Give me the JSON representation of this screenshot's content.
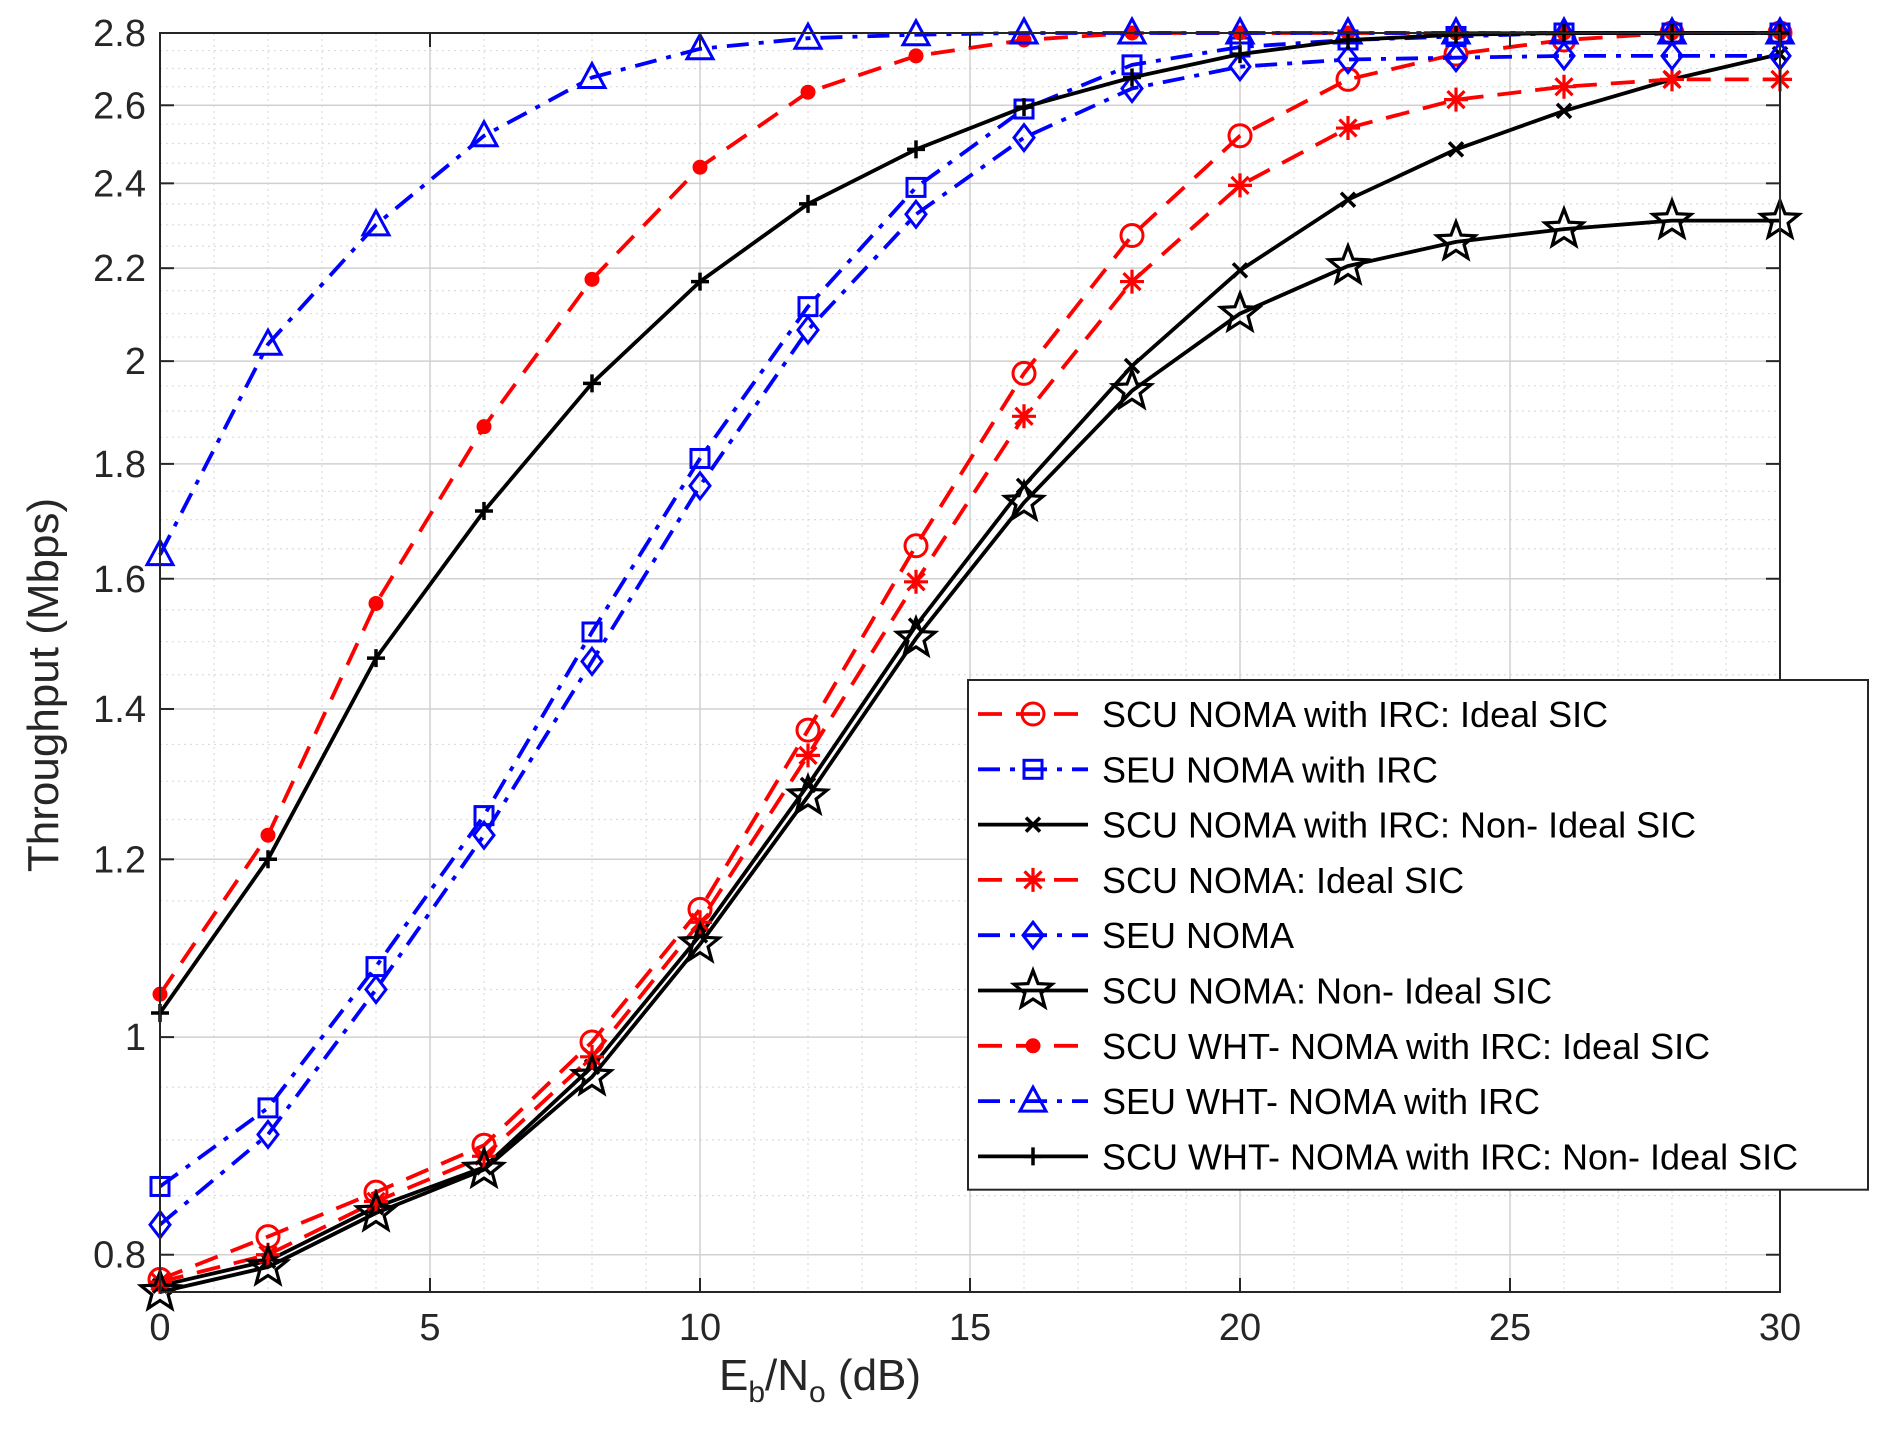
{
  "chart_data": {
    "type": "line",
    "xlabel": {
      "main": "E",
      "sub1": "b",
      "mid": "/N",
      "sub2": "o",
      "tail": " (dB)"
    },
    "ylabel": "Throughput (Mbps)",
    "xlim": [
      0,
      30
    ],
    "ylim": [
      0.77,
      2.8
    ],
    "yscale": "log",
    "grid": true,
    "legend_position": "bottom-right",
    "x_ticks": [
      0,
      5,
      10,
      15,
      20,
      25,
      30
    ],
    "y_ticks": [
      0.8,
      1,
      1.2,
      1.4,
      1.6,
      1.8,
      2,
      2.2,
      2.4,
      2.6,
      2.8
    ],
    "x_tick_labels": [
      "0",
      "5",
      "10",
      "15",
      "20",
      "25",
      "30"
    ],
    "y_tick_labels": [
      "0.8",
      "1",
      "1.2",
      "1.4",
      "1.6",
      "1.8",
      "2",
      "2.2",
      "2.4",
      "2.6",
      "2.8"
    ],
    "x": [
      0,
      2,
      4,
      6,
      8,
      10,
      12,
      14,
      16,
      18,
      20,
      22,
      24,
      26,
      28,
      30
    ],
    "series": [
      {
        "name": "SCU NOMA with IRC: Ideal SIC",
        "color": "#ff0000",
        "dash": "dash",
        "marker": "circle",
        "values": [
          0.78,
          0.815,
          0.853,
          0.895,
          0.995,
          1.14,
          1.37,
          1.655,
          1.975,
          2.275,
          2.52,
          2.67,
          2.74,
          2.78,
          2.8,
          2.8
        ]
      },
      {
        "name": "SEU NOMA with IRC",
        "color": "#0000ff",
        "dash": "dashdot",
        "marker": "square",
        "values": [
          0.858,
          0.93,
          1.075,
          1.255,
          1.515,
          1.81,
          2.115,
          2.39,
          2.59,
          2.71,
          2.76,
          2.78,
          2.79,
          2.8,
          2.8,
          2.8
        ]
      },
      {
        "name": "SCU NOMA with IRC: Non- Ideal SIC",
        "color": "#000000",
        "dash": "solid",
        "marker": "x",
        "values": [
          0.775,
          0.795,
          0.84,
          0.875,
          0.97,
          1.11,
          1.295,
          1.525,
          1.76,
          1.99,
          2.195,
          2.36,
          2.485,
          2.585,
          2.67,
          2.74
        ]
      },
      {
        "name": "SCU NOMA: Ideal SIC",
        "color": "#ff0000",
        "dash": "dash",
        "marker": "asterisk",
        "values": [
          0.778,
          0.8,
          0.845,
          0.885,
          0.98,
          1.125,
          1.335,
          1.595,
          1.89,
          2.17,
          2.395,
          2.54,
          2.615,
          2.65,
          2.67,
          2.67
        ]
      },
      {
        "name": "SEU NOMA",
        "color": "#0000ff",
        "dash": "dashdot",
        "marker": "diamond",
        "values": [
          0.825,
          0.905,
          1.05,
          1.23,
          1.47,
          1.76,
          2.065,
          2.325,
          2.515,
          2.645,
          2.705,
          2.725,
          2.73,
          2.735,
          2.735,
          2.735
        ]
      },
      {
        "name": "SCU NOMA: Non- Ideal SIC",
        "color": "#000000",
        "dash": "solid",
        "marker": "star",
        "values": [
          0.77,
          0.79,
          0.835,
          0.873,
          0.96,
          1.1,
          1.28,
          1.505,
          1.73,
          1.94,
          2.1,
          2.205,
          2.26,
          2.29,
          2.31,
          2.31
        ]
      },
      {
        "name": "SCU WHT- NOMA with IRC: Ideal SIC",
        "color": "#ff0000",
        "dash": "dash",
        "marker": "dot",
        "values": [
          1.045,
          1.23,
          1.56,
          1.87,
          2.175,
          2.44,
          2.635,
          2.735,
          2.78,
          2.8,
          2.8,
          2.8,
          2.8,
          2.8,
          2.8,
          2.8
        ]
      },
      {
        "name": "SEU WHT- NOMA with IRC",
        "color": "#0000ff",
        "dash": "dashdot",
        "marker": "triangle",
        "values": [
          1.64,
          2.035,
          2.3,
          2.52,
          2.675,
          2.755,
          2.785,
          2.795,
          2.8,
          2.8,
          2.8,
          2.8,
          2.8,
          2.8,
          2.8,
          2.8
        ]
      },
      {
        "name": "SCU WHT- NOMA with IRC: Non- Ideal SIC",
        "color": "#000000",
        "dash": "solid",
        "marker": "plus",
        "values": [
          1.025,
          1.2,
          1.475,
          1.715,
          1.955,
          2.17,
          2.35,
          2.485,
          2.595,
          2.675,
          2.74,
          2.78,
          2.795,
          2.8,
          2.8,
          2.8
        ]
      }
    ]
  }
}
